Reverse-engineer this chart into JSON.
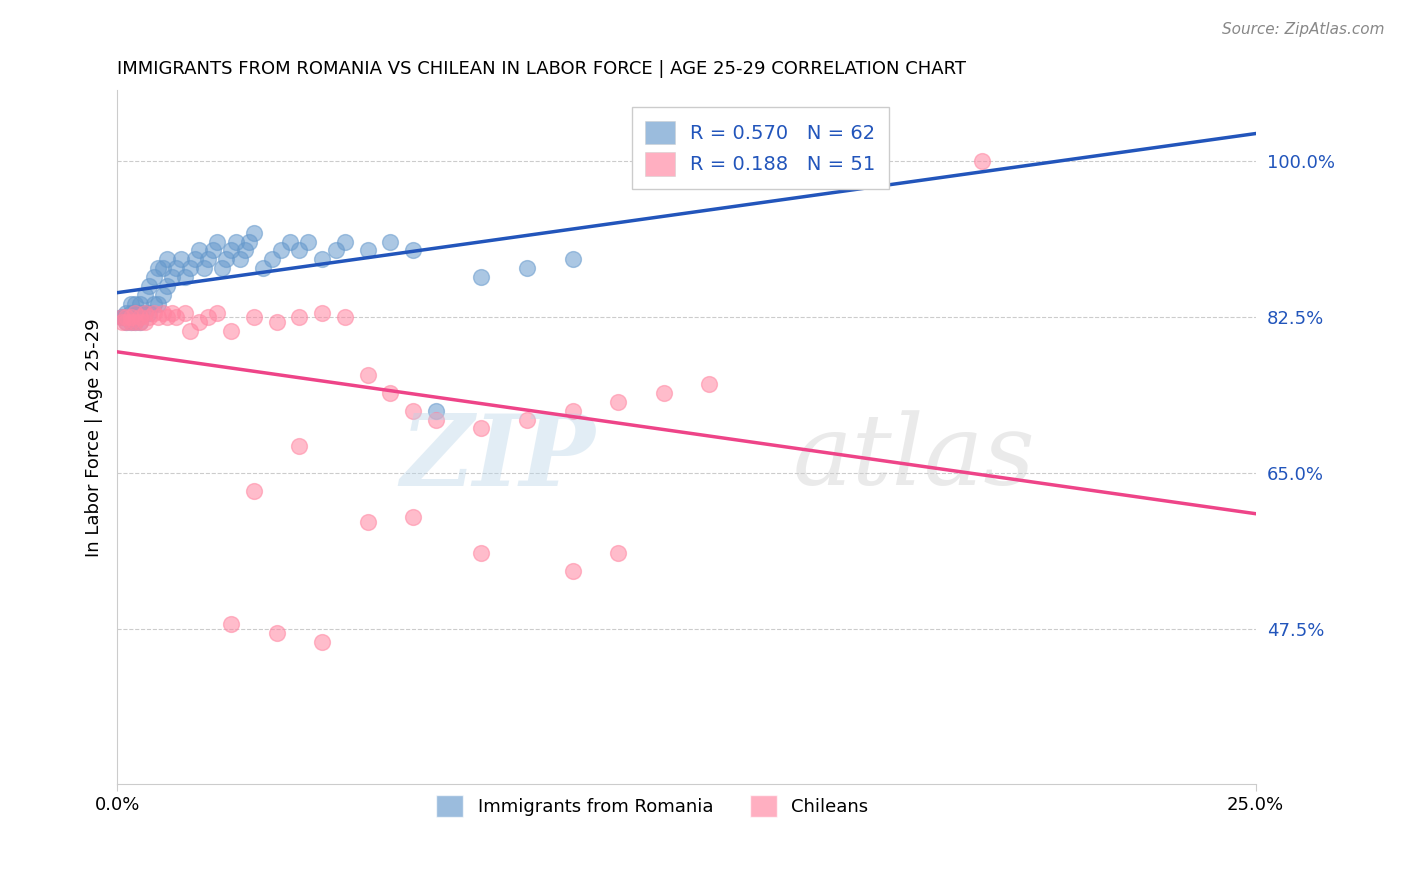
{
  "title": "IMMIGRANTS FROM ROMANIA VS CHILEAN IN LABOR FORCE | AGE 25-29 CORRELATION CHART",
  "source": "Source: ZipAtlas.com",
  "ylabel": "In Labor Force | Age 25-29",
  "xlim": [
    0.0,
    0.25
  ],
  "ylim": [
    0.3,
    1.08
  ],
  "ytick_values": [
    1.0,
    0.825,
    0.65,
    0.475
  ],
  "ytick_labels": [
    "100.0%",
    "82.5%",
    "65.0%",
    "47.5%"
  ],
  "xtick_values": [
    0.0,
    0.25
  ],
  "xtick_labels": [
    "0.0%",
    "25.0%"
  ],
  "romania_R": 0.57,
  "romania_N": 62,
  "chilean_R": 0.188,
  "chilean_N": 51,
  "romania_color": "#6699CC",
  "chilean_color": "#FF85A1",
  "romania_line_color": "#2255BB",
  "chilean_line_color": "#EE4488",
  "legend_text_color": "#2255BB",
  "romania_x": [
    0.001,
    0.001,
    0.002,
    0.002,
    0.002,
    0.003,
    0.003,
    0.003,
    0.004,
    0.004,
    0.004,
    0.005,
    0.005,
    0.005,
    0.006,
    0.006,
    0.007,
    0.007,
    0.008,
    0.008,
    0.009,
    0.009,
    0.01,
    0.01,
    0.011,
    0.011,
    0.012,
    0.013,
    0.014,
    0.015,
    0.016,
    0.017,
    0.018,
    0.019,
    0.02,
    0.021,
    0.022,
    0.023,
    0.024,
    0.025,
    0.026,
    0.027,
    0.028,
    0.029,
    0.03,
    0.032,
    0.034,
    0.036,
    0.038,
    0.04,
    0.042,
    0.045,
    0.048,
    0.05,
    0.055,
    0.06,
    0.065,
    0.07,
    0.08,
    0.09,
    0.1,
    0.158
  ],
  "romania_y": [
    0.825,
    0.825,
    0.825,
    0.82,
    0.83,
    0.82,
    0.83,
    0.84,
    0.82,
    0.83,
    0.84,
    0.82,
    0.83,
    0.84,
    0.83,
    0.85,
    0.83,
    0.86,
    0.84,
    0.87,
    0.84,
    0.88,
    0.85,
    0.88,
    0.86,
    0.89,
    0.87,
    0.88,
    0.89,
    0.87,
    0.88,
    0.89,
    0.9,
    0.88,
    0.89,
    0.9,
    0.91,
    0.88,
    0.89,
    0.9,
    0.91,
    0.89,
    0.9,
    0.91,
    0.92,
    0.88,
    0.89,
    0.9,
    0.91,
    0.9,
    0.91,
    0.89,
    0.9,
    0.91,
    0.9,
    0.91,
    0.9,
    0.72,
    0.87,
    0.88,
    0.89,
    1.0
  ],
  "chilean_x": [
    0.001,
    0.001,
    0.002,
    0.002,
    0.003,
    0.003,
    0.004,
    0.004,
    0.005,
    0.005,
    0.006,
    0.006,
    0.007,
    0.008,
    0.009,
    0.01,
    0.011,
    0.012,
    0.013,
    0.015,
    0.016,
    0.018,
    0.02,
    0.022,
    0.025,
    0.03,
    0.035,
    0.04,
    0.045,
    0.05,
    0.055,
    0.06,
    0.065,
    0.07,
    0.08,
    0.09,
    0.1,
    0.11,
    0.12,
    0.13,
    0.03,
    0.04,
    0.055,
    0.065,
    0.08,
    0.1,
    0.11,
    0.025,
    0.035,
    0.045,
    0.19
  ],
  "chilean_y": [
    0.825,
    0.82,
    0.825,
    0.82,
    0.82,
    0.825,
    0.82,
    0.83,
    0.82,
    0.825,
    0.82,
    0.83,
    0.825,
    0.83,
    0.825,
    0.83,
    0.825,
    0.83,
    0.825,
    0.83,
    0.81,
    0.82,
    0.825,
    0.83,
    0.81,
    0.825,
    0.82,
    0.825,
    0.83,
    0.825,
    0.76,
    0.74,
    0.72,
    0.71,
    0.7,
    0.71,
    0.72,
    0.73,
    0.74,
    0.75,
    0.63,
    0.68,
    0.595,
    0.6,
    0.56,
    0.54,
    0.56,
    0.48,
    0.47,
    0.46,
    1.0
  ]
}
